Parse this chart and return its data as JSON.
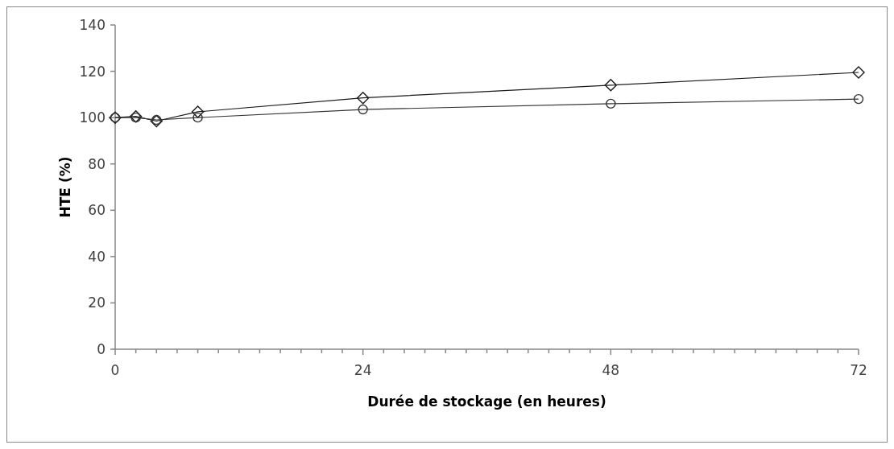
{
  "chart_data": {
    "type": "line",
    "xlabel": "Durée de stockage (en heures)",
    "ylabel": "HTE (%)",
    "xlim": [
      0,
      72
    ],
    "xticks": [
      0,
      {
        "value": 2,
        "label": null
      },
      {
        "value": 4,
        "label": null
      },
      {
        "value": 6,
        "label": null
      },
      {
        "value": 8,
        "label": null
      },
      {
        "value": 10,
        "label": null
      },
      {
        "value": 12,
        "label": null
      },
      {
        "value": 14,
        "label": null
      },
      {
        "value": 16,
        "label": null
      },
      {
        "value": 18,
        "label": null
      },
      {
        "value": 20,
        "label": null
      },
      {
        "value": 22,
        "label": null
      },
      24,
      {
        "value": 26,
        "label": null
      },
      {
        "value": 28,
        "label": null
      },
      {
        "value": 30,
        "label": null
      },
      {
        "value": 32,
        "label": null
      },
      {
        "value": 34,
        "label": null
      },
      {
        "value": 36,
        "label": null
      },
      {
        "value": 38,
        "label": null
      },
      {
        "value": 40,
        "label": null
      },
      {
        "value": 42,
        "label": null
      },
      {
        "value": 44,
        "label": null
      },
      {
        "value": 46,
        "label": null
      },
      48,
      {
        "value": 50,
        "label": null
      },
      {
        "value": 52,
        "label": null
      },
      {
        "value": 54,
        "label": null
      },
      {
        "value": 56,
        "label": null
      },
      {
        "value": 58,
        "label": null
      },
      {
        "value": 60,
        "label": null
      },
      {
        "value": 62,
        "label": null
      },
      {
        "value": 64,
        "label": null
      },
      {
        "value": 66,
        "label": null
      },
      {
        "value": 68,
        "label": null
      },
      {
        "value": 70,
        "label": null
      },
      72
    ],
    "ylim": [
      0,
      140
    ],
    "yticks": [
      0,
      20,
      40,
      60,
      80,
      100,
      120,
      140
    ],
    "x": [
      0,
      2,
      4,
      8,
      24,
      48,
      72
    ],
    "series": [
      {
        "color": "#1a1a1a",
        "marker": "diamond",
        "values": [
          100,
          100.5,
          98.5,
          102.5,
          108.5,
          114,
          119.5
        ]
      },
      {
        "color": "#333333",
        "marker": "circle",
        "values": [
          100,
          100,
          99,
          100,
          103.5,
          106,
          108
        ]
      }
    ],
    "grid": false,
    "line_style": "solid"
  }
}
